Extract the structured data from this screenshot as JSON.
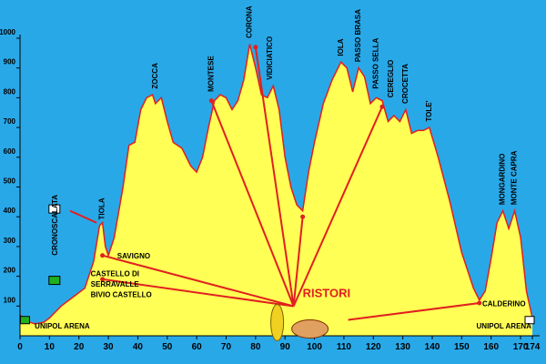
{
  "chart_data": {
    "type": "area",
    "x": [
      0,
      2,
      5,
      8,
      10,
      14,
      18,
      22,
      25,
      27,
      28,
      29,
      30,
      32,
      35,
      37,
      39,
      41,
      43,
      45,
      46,
      48,
      50,
      52,
      55,
      58,
      60,
      62,
      64,
      66,
      68,
      70,
      72,
      74,
      76,
      78,
      80,
      82,
      84,
      86,
      88,
      90,
      92,
      94,
      96,
      98,
      100,
      103,
      106,
      109,
      111,
      113,
      115,
      117,
      119,
      121,
      123,
      125,
      127,
      129,
      131,
      133,
      135,
      137,
      139,
      142,
      146,
      150,
      154,
      156,
      158,
      160,
      162,
      164,
      166,
      168,
      170,
      172,
      174
    ],
    "values": [
      70,
      50,
      40,
      45,
      60,
      100,
      130,
      160,
      250,
      370,
      380,
      300,
      270,
      330,
      500,
      640,
      650,
      760,
      800,
      810,
      780,
      800,
      720,
      650,
      630,
      570,
      550,
      600,
      700,
      790,
      810,
      800,
      760,
      790,
      860,
      980,
      900,
      810,
      800,
      840,
      760,
      600,
      500,
      440,
      420,
      550,
      650,
      780,
      860,
      920,
      900,
      820,
      900,
      870,
      780,
      800,
      790,
      720,
      740,
      720,
      760,
      680,
      690,
      690,
      700,
      600,
      450,
      280,
      160,
      120,
      150,
      260,
      380,
      420,
      360,
      420,
      330,
      150,
      60
    ],
    "color": "#ffff55",
    "line_color": "#e02020",
    "background": "#29a8e8",
    "xlim": [
      0,
      174
    ],
    "ylim": [
      0,
      1000
    ],
    "xticks": [
      0,
      10,
      20,
      30,
      40,
      50,
      60,
      70,
      80,
      90,
      100,
      110,
      120,
      130,
      140,
      150,
      160,
      170,
      174
    ],
    "yticks": [
      100,
      200,
      300,
      400,
      500,
      600,
      700,
      800,
      900,
      1000
    ],
    "peak_labels": [
      {
        "text": "TIOLA",
        "x": 28,
        "y": 390
      },
      {
        "text": "CRONOSCALATA",
        "x": 12,
        "y": 270
      },
      {
        "text": "ZOCCA",
        "x": 46,
        "y": 830
      },
      {
        "text": "MONTESE",
        "x": 65,
        "y": 820
      },
      {
        "text": "CORONA",
        "x": 78,
        "y": 1000
      },
      {
        "text": "VIDICIATICO",
        "x": 85,
        "y": 860
      },
      {
        "text": "IOLA",
        "x": 109,
        "y": 940
      },
      {
        "text": "PASSO BRASA",
        "x": 115,
        "y": 920
      },
      {
        "text": "PASSO SELLA",
        "x": 121,
        "y": 830
      },
      {
        "text": "CEREGLIO",
        "x": 126,
        "y": 800
      },
      {
        "text": "CROCETTA",
        "x": 131,
        "y": 780
      },
      {
        "text": "TOLE'",
        "x": 139,
        "y": 720
      },
      {
        "text": "MONGARDINO",
        "x": 164,
        "y": 440
      },
      {
        "text": "MONTE CAPRA",
        "x": 168,
        "y": 440
      }
    ],
    "labels": [
      {
        "text": "SAVIGNO",
        "x": 33,
        "y": 260
      },
      {
        "text": "CASTELLO DI",
        "x": 24,
        "y": 200
      },
      {
        "text": "SERRAVALLE",
        "x": 24,
        "y": 165
      },
      {
        "text": "BIVIO CASTELLO",
        "x": 24,
        "y": 130
      },
      {
        "text": "UNIPOL   ARENA",
        "x": 5,
        "y": 25
      },
      {
        "text": "UNIPOL   ARENA",
        "x": 155,
        "y": 25
      },
      {
        "text": "CALDERINO",
        "x": 157,
        "y": 100
      }
    ],
    "highlight": {
      "text": "RISTORI",
      "x": 96,
      "y": 130,
      "color": "#e02020"
    }
  }
}
